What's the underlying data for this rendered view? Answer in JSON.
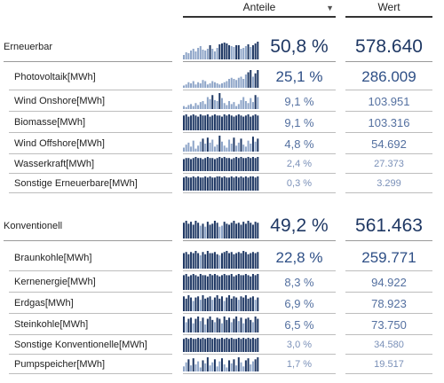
{
  "header": {
    "anteile": "Anteile",
    "sort_arrow": "▼",
    "wert": "Wert"
  },
  "groups": [
    {
      "label": "Erneuerbar",
      "pct": "50,8 %",
      "val": "578.640",
      "spark": [
        5,
        8,
        7,
        10,
        12,
        9,
        13,
        15,
        11,
        10,
        12,
        16,
        12,
        9,
        13,
        17,
        18,
        19,
        18,
        16,
        15,
        14,
        16,
        16,
        12,
        13,
        15,
        17,
        14,
        16,
        18,
        20
      ],
      "items": [
        {
          "label": "Photovoltaik[MWh]",
          "pct": "25,1 %",
          "val": "286.009",
          "level": "large",
          "spark": [
            2,
            3,
            5,
            4,
            6,
            3,
            5,
            4,
            7,
            6,
            3,
            4,
            6,
            5,
            4,
            3,
            4,
            5,
            6,
            8,
            9,
            8,
            7,
            9,
            10,
            8,
            12,
            14,
            16,
            10,
            13,
            16
          ]
        },
        {
          "label": "Wind Onshore[MWh]",
          "pct": "9,1 %",
          "val": "103.951",
          "level": "mid",
          "spark": [
            3,
            2,
            4,
            5,
            3,
            6,
            4,
            7,
            8,
            5,
            12,
            10,
            14,
            9,
            8,
            16,
            11,
            6,
            4,
            8,
            5,
            7,
            3,
            5,
            9,
            12,
            8,
            6,
            11,
            7,
            14,
            12
          ]
        },
        {
          "label": "Biomasse[MWh]",
          "pct": "9,1 %",
          "val": "103.316",
          "level": "mid",
          "spark": [
            13,
            14,
            12,
            13,
            14,
            13,
            12,
            14,
            13,
            13,
            14,
            12,
            13,
            14,
            13,
            13,
            12,
            14,
            13,
            14,
            13,
            12,
            13,
            14,
            13,
            12,
            13,
            14,
            12,
            13,
            14,
            13
          ]
        },
        {
          "label": "Wind Offshore[MWh]",
          "pct": "4,8 %",
          "val": "54.692",
          "level": "mid",
          "spark": [
            4,
            7,
            9,
            5,
            11,
            3,
            6,
            10,
            13,
            8,
            14,
            9,
            12,
            5,
            7,
            16,
            10,
            6,
            4,
            12,
            8,
            14,
            6,
            9,
            13,
            7,
            5,
            11,
            8,
            15,
            10,
            13
          ]
        },
        {
          "label": "Wasserkraft[MWh]",
          "pct": "2,4 %",
          "val": "27.373",
          "level": "small",
          "spark": [
            11,
            12,
            12,
            11,
            12,
            13,
            12,
            12,
            11,
            12,
            13,
            12,
            12,
            11,
            12,
            13,
            12,
            13,
            12,
            12,
            11,
            12,
            13,
            12,
            13,
            12,
            12,
            13,
            12,
            13,
            12,
            13
          ]
        },
        {
          "label": "Sonstige Erneuerbare[MWh]",
          "pct": "0,3 %",
          "val": "3.299",
          "level": "small",
          "spark": [
            12,
            13,
            12,
            12,
            13,
            12,
            13,
            12,
            12,
            13,
            12,
            13,
            12,
            12,
            13,
            13,
            12,
            13,
            12,
            12,
            13,
            12,
            13,
            12,
            13,
            12,
            13,
            12,
            13,
            13,
            12,
            13
          ]
        }
      ]
    },
    {
      "label": "Konventionell",
      "pct": "49,2 %",
      "val": "561.463",
      "spark": [
        16,
        18,
        15,
        17,
        14,
        18,
        16,
        13,
        15,
        12,
        17,
        14,
        15,
        18,
        16,
        12,
        13,
        17,
        15,
        14,
        16,
        18,
        15,
        16,
        14,
        17,
        15,
        18,
        16,
        14,
        17,
        16
      ],
      "items": [
        {
          "label": "Braunkohle[MWh]",
          "pct": "22,8 %",
          "val": "259.771",
          "level": "large",
          "spark": [
            14,
            15,
            13,
            15,
            14,
            16,
            14,
            12,
            15,
            13,
            16,
            14,
            14,
            15,
            13,
            12,
            14,
            15,
            16,
            14,
            15,
            13,
            14,
            15,
            14,
            16,
            15,
            13,
            14,
            15,
            14,
            15
          ]
        },
        {
          "label": "Kernenergie[MWh]",
          "pct": "8,3 %",
          "val": "94.922",
          "level": "mid",
          "spark": [
            12,
            13,
            11,
            12,
            13,
            12,
            11,
            13,
            12,
            12,
            11,
            13,
            12,
            13,
            12,
            11,
            12,
            13,
            12,
            12,
            13,
            11,
            12,
            13,
            12,
            12,
            13,
            12,
            11,
            13,
            12,
            13
          ]
        },
        {
          "label": "Erdgas[MWh]",
          "pct": "6,9 %",
          "val": "78.923",
          "level": "mid",
          "spark": [
            13,
            11,
            14,
            12,
            9,
            12,
            13,
            10,
            14,
            11,
            12,
            13,
            10,
            12,
            14,
            11,
            13,
            9,
            12,
            14,
            11,
            13,
            12,
            10,
            13,
            12,
            14,
            11,
            12,
            13,
            10,
            12
          ]
        },
        {
          "label": "Steinkohle[MWh]",
          "pct": "6,5 %",
          "val": "73.750",
          "level": "mid",
          "spark": [
            14,
            9,
            12,
            13,
            8,
            12,
            14,
            10,
            13,
            7,
            12,
            14,
            11,
            9,
            13,
            12,
            8,
            14,
            11,
            13,
            9,
            12,
            14,
            10,
            13,
            8,
            12,
            13,
            11,
            9,
            14,
            12
          ]
        },
        {
          "label": "Sonstige Konventionelle[MWh]",
          "pct": "3,0 %",
          "val": "34.580",
          "level": "small",
          "spark": [
            12,
            13,
            12,
            13,
            12,
            12,
            13,
            12,
            13,
            12,
            13,
            13,
            12,
            13,
            12,
            12,
            13,
            12,
            13,
            12,
            13,
            12,
            12,
            13,
            12,
            13,
            12,
            13,
            12,
            13,
            12,
            13
          ]
        },
        {
          "label": "Pumpspeicher[MWh]",
          "pct": "1,7 %",
          "val": "19.517",
          "level": "small",
          "spark": [
            5,
            9,
            12,
            6,
            13,
            7,
            10,
            4,
            11,
            8,
            14,
            6,
            9,
            12,
            5,
            10,
            13,
            7,
            4,
            11,
            8,
            12,
            6,
            14,
            9,
            5,
            11,
            13,
            7,
            10,
            12,
            14
          ]
        }
      ]
    }
  ],
  "colors": {
    "spark_dark": "#1f3864",
    "spark_light": "#8ea5c8"
  }
}
